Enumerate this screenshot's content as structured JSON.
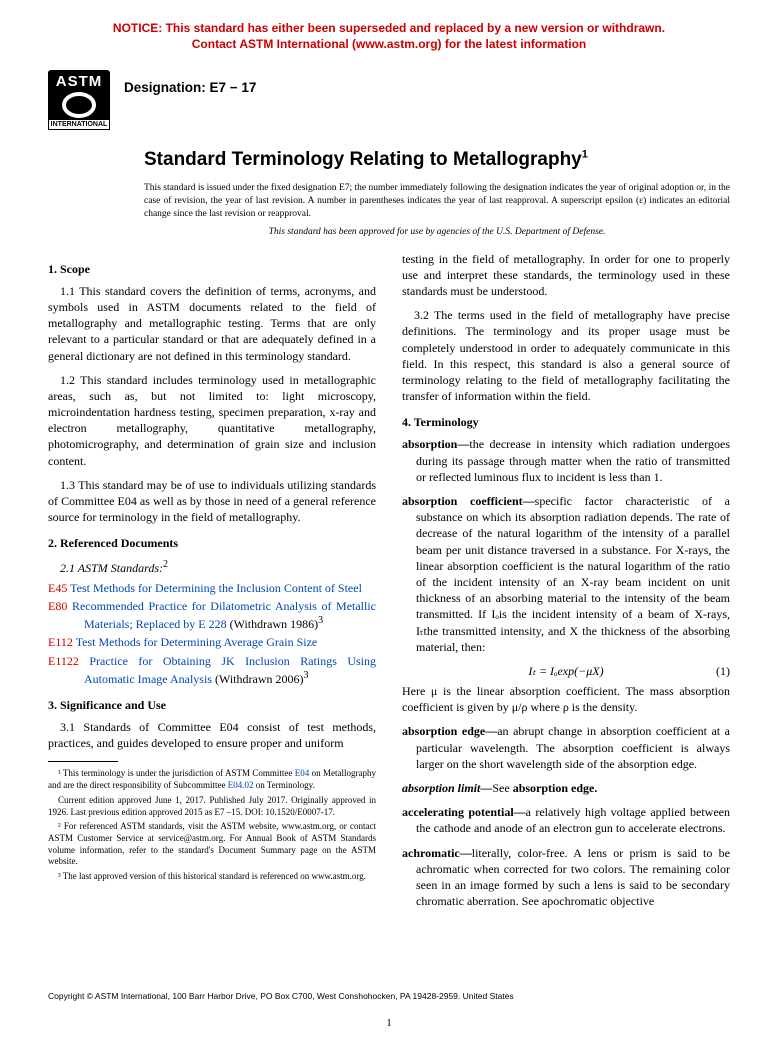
{
  "notice": {
    "line1": "NOTICE: This standard has either been superseded and replaced by a new version or withdrawn.",
    "line2": "Contact ASTM International (www.astm.org) for the latest information"
  },
  "logo": {
    "top": "ASTM",
    "bottom": "INTERNATIONAL"
  },
  "designation": "Designation: E7 − 17",
  "title": "Standard Terminology Relating to Metallography",
  "title_super": "1",
  "issuance_note": "This standard is issued under the fixed designation E7; the number immediately following the designation indicates the year of original adoption or, in the case of revision, the year of last revision. A number in parentheses indicates the year of last reapproval. A superscript epsilon (ε) indicates an editorial change since the last revision or reapproval.",
  "dod_note": "This standard has been approved for use by agencies of the U.S. Department of Defense.",
  "sections": {
    "scope": {
      "head": "1. Scope",
      "p1": "1.1 This standard covers the definition of terms, acronyms, and symbols used in ASTM documents related to the field of metallography and metallographic testing. Terms that are only relevant to a particular standard or that are adequately defined in a general dictionary are not defined in this terminology standard.",
      "p2": "1.2 This standard includes terminology used in metallographic areas, such as, but not limited to: light microscopy, microindentation hardness testing, specimen preparation, x-ray and electron metallography, quantitative metallography, photomicrography, and determination of grain size and inclusion content.",
      "p3": "1.3 This standard may be of use to individuals utilizing standards of Committee E04 as well as by those in need of a general reference source for terminology in the field of metallography."
    },
    "refs": {
      "head": "2. Referenced Documents",
      "sub": "2.1 ASTM Standards:",
      "sub_super": "2",
      "items": [
        {
          "code": "E45",
          "title": "Test Methods for Determining the Inclusion Content of Steel",
          "suffix": ""
        },
        {
          "code": "E80",
          "title": "Recommended Practice for Dilatometric Analysis of Metallic Materials; Replaced by E 228",
          "suffix": " (Withdrawn 1986)",
          "suffix_super": "3"
        },
        {
          "code": "E112",
          "title": "Test Methods for Determining Average Grain Size",
          "suffix": ""
        },
        {
          "code": "E1122",
          "title": "Practice for Obtaining JK Inclusion Ratings Using Automatic Image Analysis",
          "suffix": " (Withdrawn 2006)",
          "suffix_super": "3"
        }
      ]
    },
    "sig": {
      "head": "3. Significance and Use",
      "p1": "3.1 Standards of Committee E04 consist of test methods, practices, and guides developed to ensure proper and uniform",
      "p1b": "testing in the field of metallography. In order for one to properly use and interpret these standards, the terminology used in these standards must be understood.",
      "p2": "3.2 The terms used in the field of metallography have precise definitions. The terminology and its proper usage must be completely understood in order to adequately communicate in this field. In this respect, this standard is also a general source of terminology relating to the field of metallography facilitating the transfer of information within the field."
    },
    "terminology": {
      "head": "4. Terminology",
      "t1_term": "absorption—",
      "t1_def": "the decrease in intensity which radiation undergoes during its passage through matter when the ratio of transmitted or reflected luminous flux to incident is less than 1.",
      "t2_term": "absorption coefficient—",
      "t2_def": "specific factor characteristic of a substance on which its absorption radiation depends. The rate of decrease of the natural logarithm of the intensity of a parallel beam per unit distance traversed in a substance. For X-rays, the linear absorption coefficient is the natural logarithm of the ratio of the incident intensity of an X-ray beam incident on unit thickness of an absorbing material to the intensity of the beam transmitted. If Iₒis the incident intensity of a beam of X-rays, Iₜthe transmitted intensity, and X the thickness of the absorbing material, then:",
      "eq": "Iₜ = Iₒexp(−μX)",
      "eq_num": "(1)",
      "t2_def2": "Here μ is the linear absorption coefficient. The mass absorption coefficient is given by μ/ρ where ρ is the density.",
      "t3_term": "absorption edge—",
      "t3_def": "an abrupt change in absorption coefficient at a particular wavelength. The absorption coefficient is always larger on the short wavelength side of the absorption edge.",
      "t4_term": "absorption limit—",
      "t4_def": "See absorption edge.",
      "t5_term": "accelerating potential—",
      "t5_def": "a relatively high voltage applied between the cathode and anode of an electron gun to accelerate electrons.",
      "t6_term": "achromatic—",
      "t6_def": "literally, color-free. A lens or prism is said to be achromatic when corrected for two colors. The remaining color seen in an image formed by such a lens is said to be secondary chromatic aberration. See apochromatic objective"
    }
  },
  "footnotes": {
    "f1a": "¹ This terminology is under the jurisdiction of ASTM Committee ",
    "f1_link1": "E04",
    "f1b": " on Metallography and are the direct responsibility of Subcommittee ",
    "f1_link2": "E04.02",
    "f1c": " on Terminology.",
    "f1d": "Current edition approved June 1, 2017. Published July 2017. Originally approved in 1926. Last previous edition approved 2015 as E7 –15. DOI: 10.1520/E0007-17.",
    "f2": "² For referenced ASTM standards, visit the ASTM website, www.astm.org, or contact ASTM Customer Service at service@astm.org. For Annual Book of ASTM Standards volume information, refer to the standard's Document Summary page on the ASTM website.",
    "f3": "³ The last approved version of this historical standard is referenced on www.astm.org."
  },
  "copyright": "Copyright © ASTM International, 100 Barr Harbor Drive, PO Box C700, West Conshohocken, PA 19428-2959. United States",
  "page_num": "1"
}
